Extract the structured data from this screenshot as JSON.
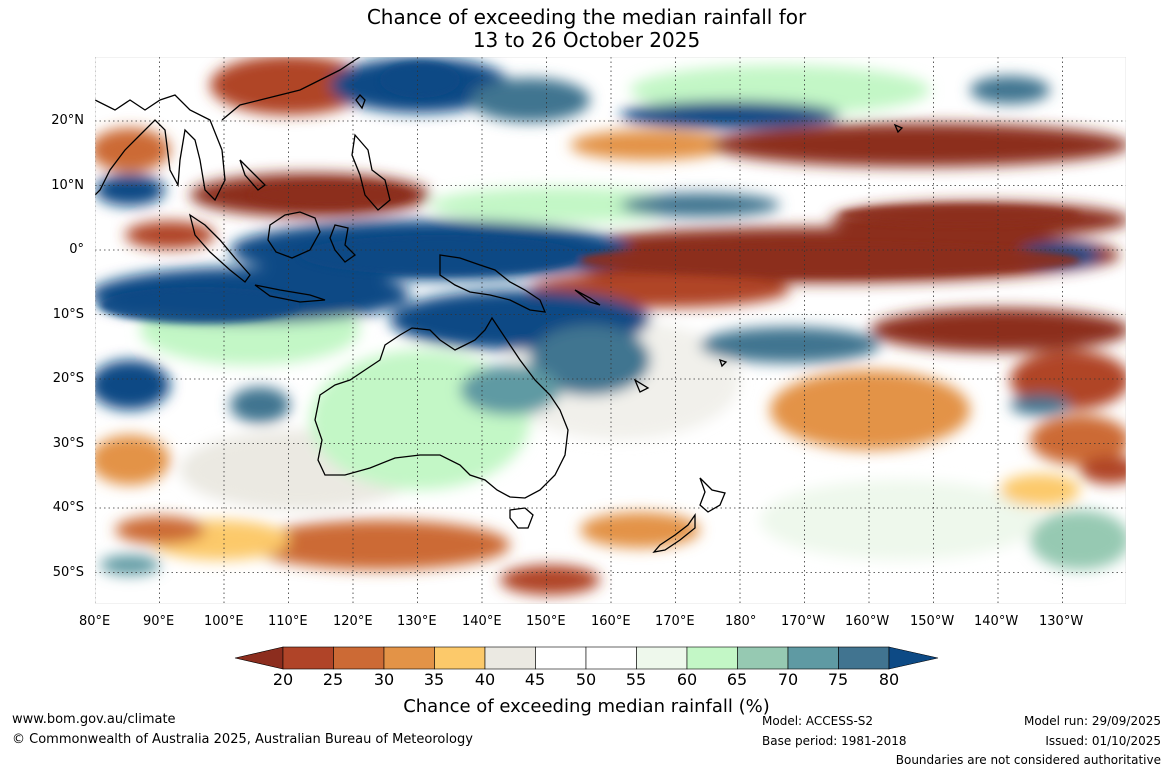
{
  "title_line1": "Chance of exceeding the median rainfall for",
  "title_line2": "13 to 26 October 2025",
  "lat_labels": [
    "20°N",
    "10°N",
    "0°",
    "10°S",
    "20°S",
    "30°S",
    "40°S",
    "50°S"
  ],
  "lon_labels": [
    "80°E",
    "90°E",
    "100°E",
    "110°E",
    "120°E",
    "130°E",
    "140°E",
    "150°E",
    "160°E",
    "170°E",
    "180°",
    "170°W",
    "160°W",
    "150°W",
    "140°W",
    "130°W"
  ],
  "colorbar": {
    "ticks": [
      "20",
      "25",
      "30",
      "35",
      "40",
      "45",
      "50",
      "55",
      "60",
      "65",
      "70",
      "75",
      "80"
    ],
    "colors": [
      "#8c2d1e",
      "#b04428",
      "#cc6a35",
      "#e39347",
      "#fcc96a",
      "#ebe9e2",
      "#ffffff",
      "#ffffff",
      "#eef8ec",
      "#c3f7c6",
      "#96c9b2",
      "#5f9aa3",
      "#417490",
      "#0d4a85"
    ],
    "title": "Chance of exceeding median rainfall (%)"
  },
  "footer": {
    "url": "www.bom.gov.au/climate",
    "copyright": "© Commonwealth of Australia 2025, Australian Bureau of Meteorology",
    "model": "Model: ACCESS-S2",
    "base_period": "Base period: 1981-2018",
    "model_run": "Model run: 29/09/2025",
    "issued": "Issued: 01/10/2025",
    "disclaimer": "Boundaries are not considered authoritative"
  }
}
